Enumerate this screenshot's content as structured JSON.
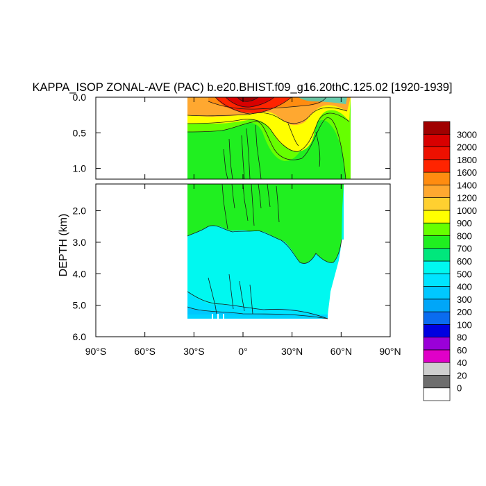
{
  "chart_data": {
    "type": "heatmap",
    "title": "KAPPA_ISOP ZONAL-AVE (PAC) b.e20.BHIST.f09_g16.20thC.125.02 [1920-1939]",
    "ylabel": "DEPTH (km)",
    "xlabel": "",
    "x_ticks": [
      "90°S",
      "60°S",
      "30°S",
      "0°",
      "30°N",
      "60°N",
      "90°N"
    ],
    "x_tick_values": [
      -90,
      -60,
      -30,
      0,
      30,
      60,
      90
    ],
    "xlim": [
      -90,
      90
    ],
    "upper_panel": {
      "ylim": [
        0.0,
        1.15
      ],
      "y_ticks": [
        "0.0",
        "0.5",
        "1.0"
      ],
      "y_tick_values": [
        0.0,
        0.5,
        1.0
      ]
    },
    "lower_panel": {
      "ylim": [
        1.15,
        6.0
      ],
      "y_ticks": [
        "2.0",
        "3.0",
        "4.0",
        "5.0",
        "6.0"
      ],
      "y_tick_values": [
        2.0,
        3.0,
        4.0,
        5.0,
        6.0
      ]
    },
    "data_extent": {
      "lat_min": -33,
      "lat_max": 68,
      "max_depth": 5.4
    },
    "colorbar": {
      "levels": [
        "0",
        "20",
        "40",
        "60",
        "80",
        "100",
        "200",
        "300",
        "400",
        "500",
        "600",
        "700",
        "800",
        "900",
        "1000",
        "1200",
        "1400",
        "1600",
        "1800",
        "2000",
        "3000"
      ],
      "colors": [
        "#ffffff",
        "#6e6e6e",
        "#cfcfcf",
        "#e000c8",
        "#9a00d8",
        "#0000e0",
        "#0a6cf0",
        "#00a6f8",
        "#00c8ff",
        "#00e4ff",
        "#00f8f0",
        "#00e77c",
        "#20ef20",
        "#66ff00",
        "#ffff00",
        "#ffd030",
        "#ffa830",
        "#ff8c10",
        "#ff2400",
        "#ee1000",
        "#d80000",
        "#a00000"
      ]
    },
    "fields": [
      {
        "range": "3000+",
        "color": "#a00000",
        "description": "surface maximum near equator"
      },
      {
        "range": "1600-2000",
        "color": "#ff2400",
        "description": "near-surface equatorial core"
      },
      {
        "range": "1000-1400",
        "color": "#ffa830",
        "description": "upper ocean above ~0.3 km"
      },
      {
        "range": "900-1000",
        "color": "#ffff00",
        "description": "upper thermocline band"
      },
      {
        "range": "700-800",
        "color": "#20ef20",
        "description": "thermocline to ~2.5 km"
      },
      {
        "range": "500-600",
        "color": "#00f8f0",
        "description": "deep ocean interior"
      },
      {
        "range": "300-400",
        "color": "#00c8ff",
        "description": "near ocean bottom"
      }
    ]
  }
}
